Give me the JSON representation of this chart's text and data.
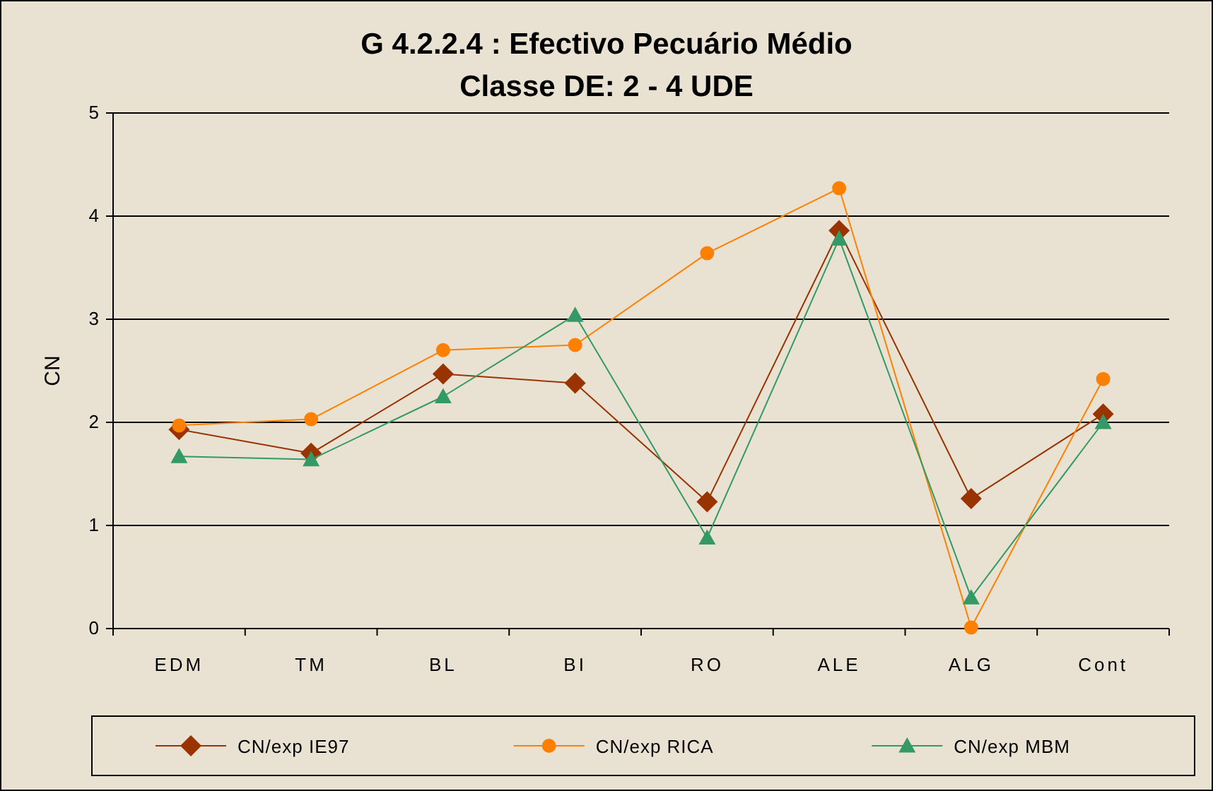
{
  "chart_data": {
    "type": "line",
    "title": "G 4.2.2.4 : Efectivo Pecuário Médio",
    "subtitle": "Classe DE: 2 - 4 UDE",
    "ylabel": "CN",
    "categories": [
      "EDM",
      "TM",
      "BL",
      "BI",
      "RO",
      "ALE",
      "ALG",
      "Cont"
    ],
    "series": [
      {
        "name": "CN/exp IE97",
        "color": "#993300",
        "marker": "diamond",
        "values": [
          1.93,
          1.7,
          2.47,
          2.38,
          1.23,
          3.86,
          1.26,
          2.08
        ]
      },
      {
        "name": "CN/exp RICA",
        "color": "#ff8000",
        "marker": "circle",
        "values": [
          1.97,
          2.03,
          2.7,
          2.75,
          3.64,
          4.27,
          0.01,
          2.42
        ]
      },
      {
        "name": "CN/exp MBM",
        "color": "#339966",
        "marker": "triangle",
        "values": [
          1.67,
          1.64,
          2.25,
          3.04,
          0.88,
          3.78,
          0.3,
          2.0
        ]
      }
    ],
    "ylim": [
      0,
      5
    ],
    "yticks": [
      0,
      1,
      2,
      3,
      4,
      5
    ],
    "grid": "y",
    "legend": "bottom"
  }
}
